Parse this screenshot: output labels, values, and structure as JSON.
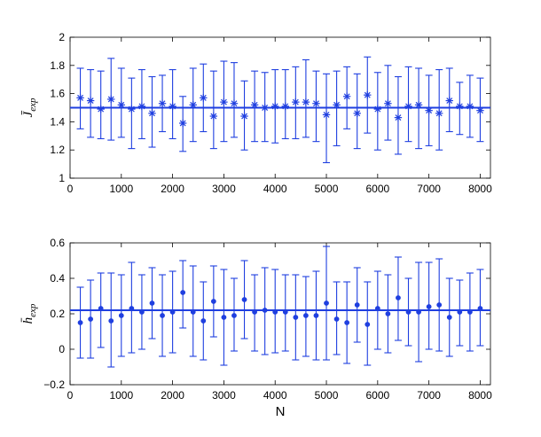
{
  "chart_data": [
    {
      "type": "scatter",
      "marker": "asterisk",
      "error_bars": true,
      "color": "#1f3fe0",
      "ylabel": "J̄",
      "ylabel_sub": "exp",
      "xlabel": "",
      "xlim": [
        0,
        8200
      ],
      "ylim": [
        1,
        2
      ],
      "x_ticks": [
        "0",
        "1000",
        "2000",
        "3000",
        "4000",
        "5000",
        "6000",
        "7000",
        "8000"
      ],
      "y_ticks": [
        "1",
        "1.2",
        "1.4",
        "1.6",
        "1.8",
        "2"
      ],
      "reference_line": 1.5,
      "x": [
        200,
        400,
        600,
        800,
        1000,
        1200,
        1400,
        1600,
        1800,
        2000,
        2200,
        2400,
        2600,
        2800,
        3000,
        3200,
        3400,
        3600,
        3800,
        4000,
        4200,
        4400,
        4600,
        4800,
        5000,
        5200,
        5400,
        5600,
        5800,
        6000,
        6200,
        6400,
        6600,
        6800,
        7000,
        7200,
        7400,
        7600,
        7800,
        8000
      ],
      "values": [
        1.57,
        1.55,
        1.49,
        1.56,
        1.52,
        1.49,
        1.51,
        1.46,
        1.53,
        1.51,
        1.39,
        1.52,
        1.57,
        1.44,
        1.54,
        1.53,
        1.44,
        1.52,
        1.5,
        1.51,
        1.51,
        1.54,
        1.54,
        1.53,
        1.45,
        1.52,
        1.58,
        1.46,
        1.59,
        1.49,
        1.53,
        1.43,
        1.51,
        1.52,
        1.48,
        1.46,
        1.55,
        1.51,
        1.51,
        1.48
      ],
      "upper": [
        1.78,
        1.77,
        1.76,
        1.85,
        1.78,
        1.71,
        1.77,
        1.72,
        1.73,
        1.77,
        1.58,
        1.78,
        1.81,
        1.76,
        1.83,
        1.82,
        1.69,
        1.76,
        1.75,
        1.77,
        1.77,
        1.79,
        1.84,
        1.76,
        1.74,
        1.76,
        1.79,
        1.74,
        1.86,
        1.75,
        1.8,
        1.72,
        1.79,
        1.78,
        1.73,
        1.77,
        1.78,
        1.68,
        1.73,
        1.71
      ],
      "lower": [
        1.35,
        1.29,
        1.28,
        1.27,
        1.29,
        1.21,
        1.28,
        1.22,
        1.33,
        1.28,
        1.19,
        1.26,
        1.33,
        1.21,
        1.26,
        1.29,
        1.2,
        1.26,
        1.26,
        1.25,
        1.28,
        1.28,
        1.29,
        1.26,
        1.11,
        1.23,
        1.35,
        1.21,
        1.32,
        1.2,
        1.27,
        1.17,
        1.26,
        1.21,
        1.23,
        1.2,
        1.33,
        1.31,
        1.29,
        1.26
      ]
    },
    {
      "type": "scatter",
      "marker": "dot",
      "error_bars": true,
      "color": "#1f3fe0",
      "ylabel": "h̄",
      "ylabel_sub": "exp",
      "xlabel": "N",
      "xlim": [
        0,
        8200
      ],
      "ylim": [
        -0.2,
        0.6
      ],
      "x_ticks": [
        "0",
        "1000",
        "2000",
        "3000",
        "4000",
        "5000",
        "6000",
        "7000",
        "8000"
      ],
      "y_ticks": [
        "−0.2",
        "0",
        "0.2",
        "0.4",
        "0.6"
      ],
      "reference_line": 0.22,
      "x": [
        200,
        400,
        600,
        800,
        1000,
        1200,
        1400,
        1600,
        1800,
        2000,
        2200,
        2400,
        2600,
        2800,
        3000,
        3200,
        3400,
        3600,
        3800,
        4000,
        4200,
        4400,
        4600,
        4800,
        5000,
        5200,
        5400,
        5600,
        5800,
        6000,
        6200,
        6400,
        6600,
        6800,
        7000,
        7200,
        7400,
        7600,
        7800,
        8000
      ],
      "values": [
        0.15,
        0.17,
        0.23,
        0.16,
        0.19,
        0.23,
        0.21,
        0.26,
        0.19,
        0.21,
        0.32,
        0.21,
        0.16,
        0.27,
        0.18,
        0.19,
        0.28,
        0.21,
        0.22,
        0.21,
        0.21,
        0.18,
        0.19,
        0.19,
        0.26,
        0.17,
        0.15,
        0.25,
        0.14,
        0.23,
        0.2,
        0.29,
        0.21,
        0.21,
        0.24,
        0.25,
        0.18,
        0.21,
        0.21,
        0.23
      ],
      "upper": [
        0.35,
        0.39,
        0.43,
        0.43,
        0.42,
        0.49,
        0.42,
        0.46,
        0.42,
        0.44,
        0.5,
        0.47,
        0.38,
        0.47,
        0.45,
        0.4,
        0.5,
        0.42,
        0.46,
        0.45,
        0.42,
        0.42,
        0.41,
        0.44,
        0.58,
        0.38,
        0.38,
        0.46,
        0.38,
        0.44,
        0.42,
        0.52,
        0.4,
        0.49,
        0.49,
        0.51,
        0.4,
        0.39,
        0.43,
        0.45
      ],
      "lower": [
        -0.05,
        -0.05,
        0.01,
        -0.1,
        -0.04,
        -0.02,
        0.0,
        0.06,
        -0.04,
        -0.02,
        0.12,
        -0.04,
        -0.06,
        0.07,
        -0.09,
        -0.01,
        0.06,
        -0.01,
        -0.03,
        -0.02,
        -0.01,
        -0.06,
        -0.04,
        -0.06,
        -0.06,
        -0.03,
        -0.08,
        0.04,
        -0.09,
        0.0,
        -0.02,
        0.05,
        0.02,
        -0.07,
        0.0,
        -0.01,
        -0.04,
        0.02,
        -0.01,
        0.02
      ]
    }
  ]
}
